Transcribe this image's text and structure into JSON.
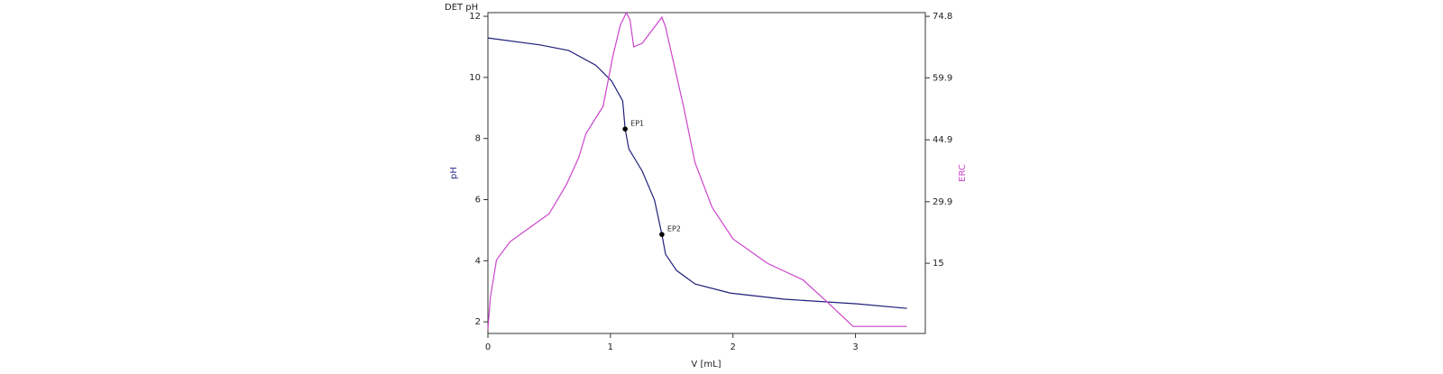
{
  "chart_data": {
    "type": "line",
    "title": "DET pH",
    "xlabel": "V [mL]",
    "ylabel": "pH",
    "y2label": "ERC",
    "xlim": [
      0,
      3.57
    ],
    "ylim": [
      1.62,
      12.12
    ],
    "y2lim": [
      -2,
      75.7
    ],
    "xticks": [
      0,
      1,
      2,
      3
    ],
    "yticks": [
      2,
      4,
      6,
      8,
      10,
      12
    ],
    "y2ticks": [
      15,
      29.9,
      44.9,
      59.9,
      74.8
    ],
    "series": [
      {
        "color": "#1f1f7a",
        "x": [
          0,
          0.43,
          0.66,
          0.88,
          1.01,
          1.1,
          1.12,
          1.15,
          1.26,
          1.36,
          1.42,
          1.45,
          1.54,
          1.69,
          1.98,
          2.42,
          3.01,
          3.42
        ],
        "values": [
          11.29,
          11.06,
          10.88,
          10.4,
          9.88,
          9.23,
          8.31,
          7.66,
          6.93,
          5.98,
          4.86,
          4.21,
          3.68,
          3.24,
          2.94,
          2.74,
          2.59,
          2.44
        ]
      },
      {
        "color": "#cc44cc",
        "axis": "y2",
        "x": [
          0,
          0.02,
          0.07,
          0.18,
          0.5,
          0.64,
          0.74,
          0.8,
          0.94,
          1.02,
          1.08,
          1.13,
          1.16,
          1.19,
          1.26,
          1.36,
          1.42,
          1.45,
          1.5,
          1.6,
          1.69,
          1.83,
          2.0,
          2.28,
          2.57,
          2.77,
          2.98,
          3.42
        ],
        "values": [
          -1.0,
          6.7,
          15.8,
          20.2,
          27.0,
          34.0,
          40.5,
          46.4,
          53.0,
          65.2,
          72.6,
          75.7,
          73.9,
          67.4,
          68.3,
          72.2,
          74.6,
          72.2,
          65.6,
          52.5,
          39.4,
          28.5,
          20.9,
          15.0,
          11.0,
          5.6,
          -0.3,
          -0.3
        ]
      }
    ],
    "endpoints": [
      {
        "label": "EP1",
        "x": 1.12,
        "y": 8.31
      },
      {
        "label": "EP2",
        "x": 1.42,
        "y": 4.86
      }
    ]
  }
}
